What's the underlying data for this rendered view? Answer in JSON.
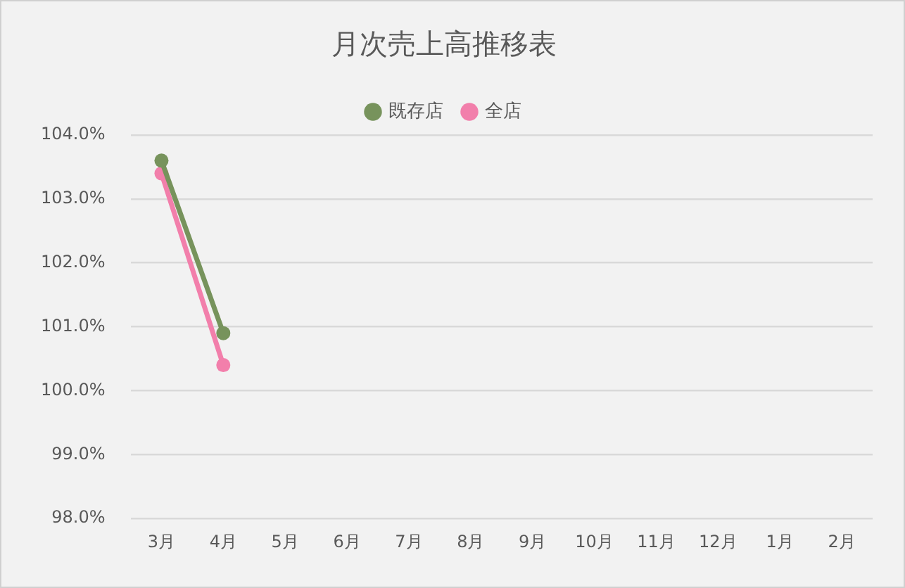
{
  "chart_data": {
    "type": "line",
    "title": "月次売上高推移表",
    "categories": [
      "3月",
      "4月",
      "5月",
      "6月",
      "7月",
      "8月",
      "9月",
      "10月",
      "11月",
      "12月",
      "1月",
      "2月"
    ],
    "series": [
      {
        "name": "既存店",
        "color": "#77935c",
        "values": [
          103.6,
          100.9,
          null,
          null,
          null,
          null,
          null,
          null,
          null,
          null,
          null,
          null
        ]
      },
      {
        "name": "全店",
        "color": "#f27fab",
        "values": [
          103.4,
          100.4,
          null,
          null,
          null,
          null,
          null,
          null,
          null,
          null,
          null,
          null
        ]
      }
    ],
    "ylim": [
      98,
      104
    ],
    "yticks": [
      {
        "value": 98,
        "label": "98.0%"
      },
      {
        "value": 99,
        "label": "99.0%"
      },
      {
        "value": 100,
        "label": "100.0%"
      },
      {
        "value": 101,
        "label": "101.0%"
      },
      {
        "value": 102,
        "label": "102.0%"
      },
      {
        "value": 103,
        "label": "103.0%"
      },
      {
        "value": 104,
        "label": "104.0%"
      }
    ],
    "grid": "y",
    "legend": "top",
    "marker": "circle"
  }
}
